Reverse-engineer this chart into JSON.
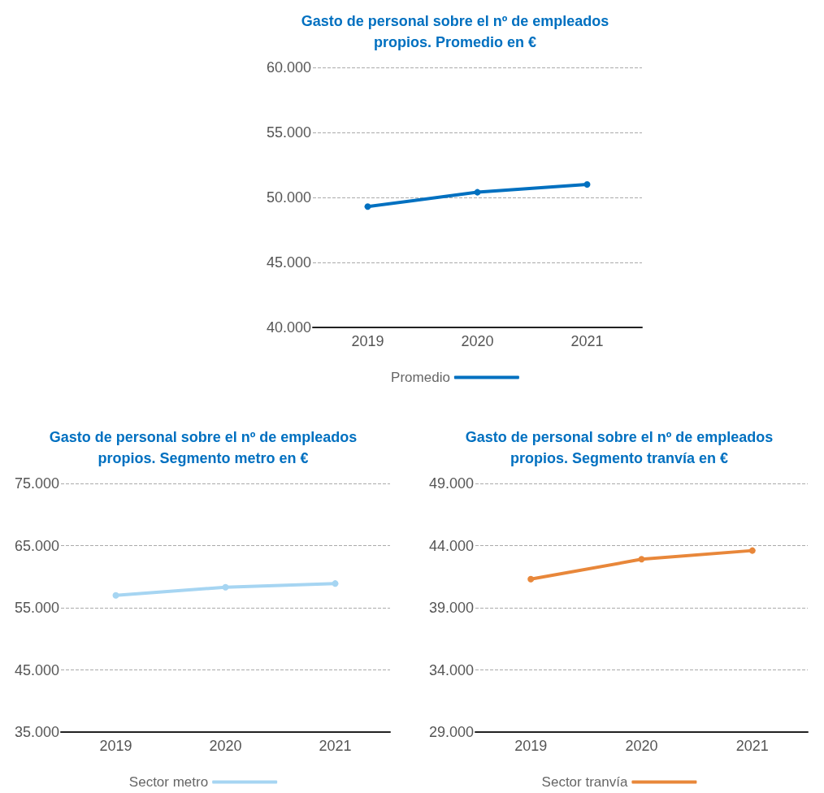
{
  "chart_data": [
    {
      "type": "line",
      "title": "Gasto de personal sobre el nº de empleados\npropios. Promedio en €",
      "categories": [
        "2019",
        "2020",
        "2021"
      ],
      "series": [
        {
          "name": "Promedio",
          "color": "#0070c0",
          "values": [
            49300,
            50400,
            51000
          ]
        }
      ],
      "ylim": [
        40000,
        60000
      ],
      "yticks": [
        {
          "value": 40000,
          "label": "40.000"
        },
        {
          "value": 45000,
          "label": "45.000"
        },
        {
          "value": 50000,
          "label": "50.000"
        },
        {
          "value": 55000,
          "label": "55.000"
        },
        {
          "value": 60000,
          "label": "60.000"
        }
      ],
      "grid": "y",
      "legend": "bottom",
      "marker": "circle",
      "line_style": "solid"
    },
    {
      "type": "line",
      "title": "Gasto de personal sobre el nº de empleados\npropios. Segmento metro en €",
      "categories": [
        "2019",
        "2020",
        "2021"
      ],
      "series": [
        {
          "name": "Sector metro",
          "color": "#a6d5f2",
          "values": [
            57000,
            58300,
            58900
          ]
        }
      ],
      "ylim": [
        35000,
        75000
      ],
      "yticks": [
        {
          "value": 35000,
          "label": "35.000"
        },
        {
          "value": 45000,
          "label": "45.000"
        },
        {
          "value": 55000,
          "label": "55.000"
        },
        {
          "value": 65000,
          "label": "65.000"
        },
        {
          "value": 75000,
          "label": "75.000"
        }
      ],
      "grid": "y",
      "legend": "bottom",
      "marker": "circle",
      "line_style": "solid"
    },
    {
      "type": "line",
      "title": "Gasto de personal sobre el nº de empleados\npropios. Segmento tranvía en €",
      "categories": [
        "2019",
        "2020",
        "2021"
      ],
      "series": [
        {
          "name": "Sector tranvía",
          "color": "#e8873a",
          "values": [
            41300,
            42900,
            43600
          ]
        }
      ],
      "ylim": [
        29000,
        49000
      ],
      "yticks": [
        {
          "value": 29000,
          "label": "29.000"
        },
        {
          "value": 34000,
          "label": "34.000"
        },
        {
          "value": 39000,
          "label": "39.000"
        },
        {
          "value": 44000,
          "label": "44.000"
        },
        {
          "value": 49000,
          "label": "49.000"
        }
      ],
      "grid": "y",
      "legend": "bottom",
      "marker": "circle",
      "line_style": "solid"
    }
  ]
}
